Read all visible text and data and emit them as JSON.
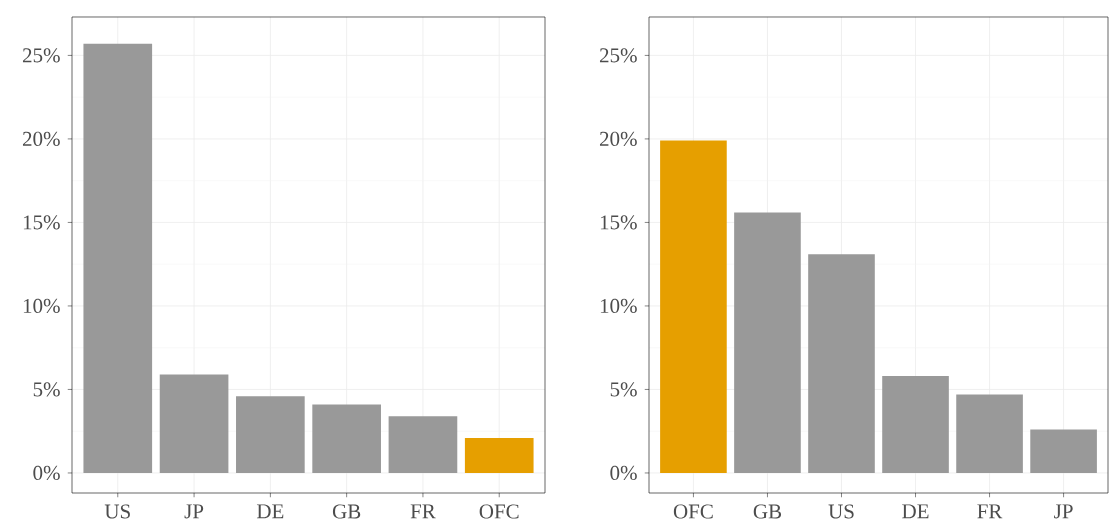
{
  "chart_data": [
    {
      "type": "bar",
      "categories": [
        "US",
        "JP",
        "DE",
        "GB",
        "FR",
        "OFC"
      ],
      "values": [
        25.7,
        5.9,
        4.6,
        4.1,
        3.4,
        2.1
      ],
      "colors": [
        "#999999",
        "#999999",
        "#999999",
        "#999999",
        "#999999",
        "#e69f00"
      ],
      "ylim": [
        -1.2,
        27.3
      ],
      "yticks": [
        {
          "value": 0,
          "label": "0%"
        },
        {
          "value": 5,
          "label": "5%"
        },
        {
          "value": 10,
          "label": "10%"
        },
        {
          "value": 15,
          "label": "15%"
        },
        {
          "value": 20,
          "label": "20%"
        },
        {
          "value": 25,
          "label": "25%"
        }
      ],
      "grid": true
    },
    {
      "type": "bar",
      "categories": [
        "OFC",
        "GB",
        "US",
        "DE",
        "FR",
        "JP"
      ],
      "values": [
        19.9,
        15.6,
        13.1,
        5.8,
        4.7,
        2.6
      ],
      "colors": [
        "#e69f00",
        "#999999",
        "#999999",
        "#999999",
        "#999999",
        "#999999"
      ],
      "ylim": [
        -1.2,
        27.3
      ],
      "yticks": [
        {
          "value": 0,
          "label": "0%"
        },
        {
          "value": 5,
          "label": "5%"
        },
        {
          "value": 10,
          "label": "10%"
        },
        {
          "value": 15,
          "label": "15%"
        },
        {
          "value": 20,
          "label": "20%"
        },
        {
          "value": 25,
          "label": "25%"
        }
      ],
      "grid": true
    }
  ]
}
